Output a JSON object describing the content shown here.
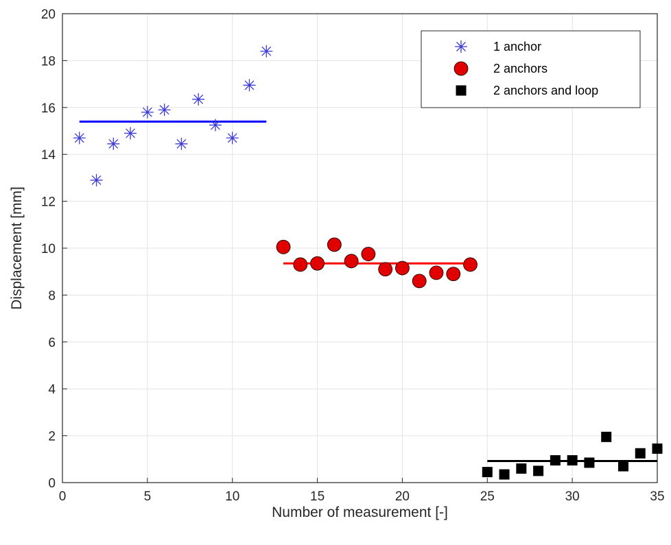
{
  "chart_data": {
    "type": "scatter",
    "title": "",
    "xlabel": "Number of measurement [-]",
    "ylabel": "Displacement [mm]",
    "xlim": [
      0,
      35
    ],
    "ylim": [
      0,
      20
    ],
    "xticks": [
      "0",
      "5",
      "10",
      "15",
      "20",
      "25",
      "30",
      "35"
    ],
    "yticks": [
      "0",
      "2",
      "4",
      "6",
      "8",
      "10",
      "12",
      "14",
      "16",
      "18",
      "20"
    ],
    "grid": true,
    "legend_position": "top-right",
    "series": [
      {
        "name": "1 anchor",
        "marker": "asterisk",
        "color": "#3b3bd6",
        "x": [
          1,
          2,
          3,
          4,
          5,
          6,
          7,
          8,
          9,
          10,
          11,
          12
        ],
        "y": [
          14.7,
          12.9,
          14.45,
          14.9,
          15.8,
          15.9,
          14.45,
          16.35,
          15.25,
          14.7,
          16.95,
          18.4
        ],
        "mean_line": {
          "x": [
            1,
            12
          ],
          "y": 15.4,
          "color": "#0000ff"
        }
      },
      {
        "name": "2 anchors",
        "marker": "circle",
        "color": "#e00000",
        "x": [
          13,
          14,
          15,
          16,
          17,
          18,
          19,
          20,
          21,
          22,
          23,
          24
        ],
        "y": [
          10.05,
          9.3,
          9.35,
          10.15,
          9.45,
          9.75,
          9.1,
          9.15,
          8.6,
          8.95,
          8.9,
          9.3
        ],
        "mean_line": {
          "x": [
            13,
            24
          ],
          "y": 9.35,
          "color": "#ff0000"
        }
      },
      {
        "name": "2 anchors and loop",
        "marker": "square",
        "color": "#000000",
        "x": [
          25,
          26,
          27,
          28,
          29,
          30,
          31,
          32,
          33,
          34,
          35
        ],
        "y": [
          0.45,
          0.35,
          0.6,
          0.5,
          0.95,
          0.95,
          0.85,
          1.95,
          0.7,
          1.25,
          1.45
        ],
        "mean_line": {
          "x": [
            25,
            35
          ],
          "y": 0.92,
          "color": "#000000"
        }
      }
    ]
  }
}
